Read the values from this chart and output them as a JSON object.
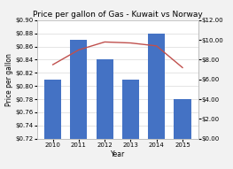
{
  "title": "Price per gallon of Gas - Kuwait vs Norway",
  "years": [
    2010,
    2011,
    2012,
    2013,
    2014,
    2015
  ],
  "kuwait_values": [
    0.81,
    0.87,
    0.84,
    0.81,
    0.88,
    0.78
  ],
  "norway_values": [
    7.5,
    9.0,
    9.8,
    9.7,
    9.4,
    7.2
  ],
  "bar_color": "#4472C4",
  "line_color": "#C0504D",
  "left_ylim": [
    0.72,
    0.9
  ],
  "right_ylim": [
    0.0,
    12.0
  ],
  "left_yticks": [
    0.72,
    0.74,
    0.76,
    0.78,
    0.8,
    0.82,
    0.84,
    0.86,
    0.88,
    0.9
  ],
  "right_yticks": [
    0.0,
    2.0,
    4.0,
    6.0,
    8.0,
    10.0,
    12.0
  ],
  "xlabel": "Year",
  "ylabel_left": "Price per gallon",
  "background_color": "#F2F2F2",
  "plot_bg_color": "#FFFFFF",
  "grid_color": "#D9D9D9",
  "title_fontsize": 6.5,
  "label_fontsize": 5.5,
  "tick_fontsize": 5.0
}
